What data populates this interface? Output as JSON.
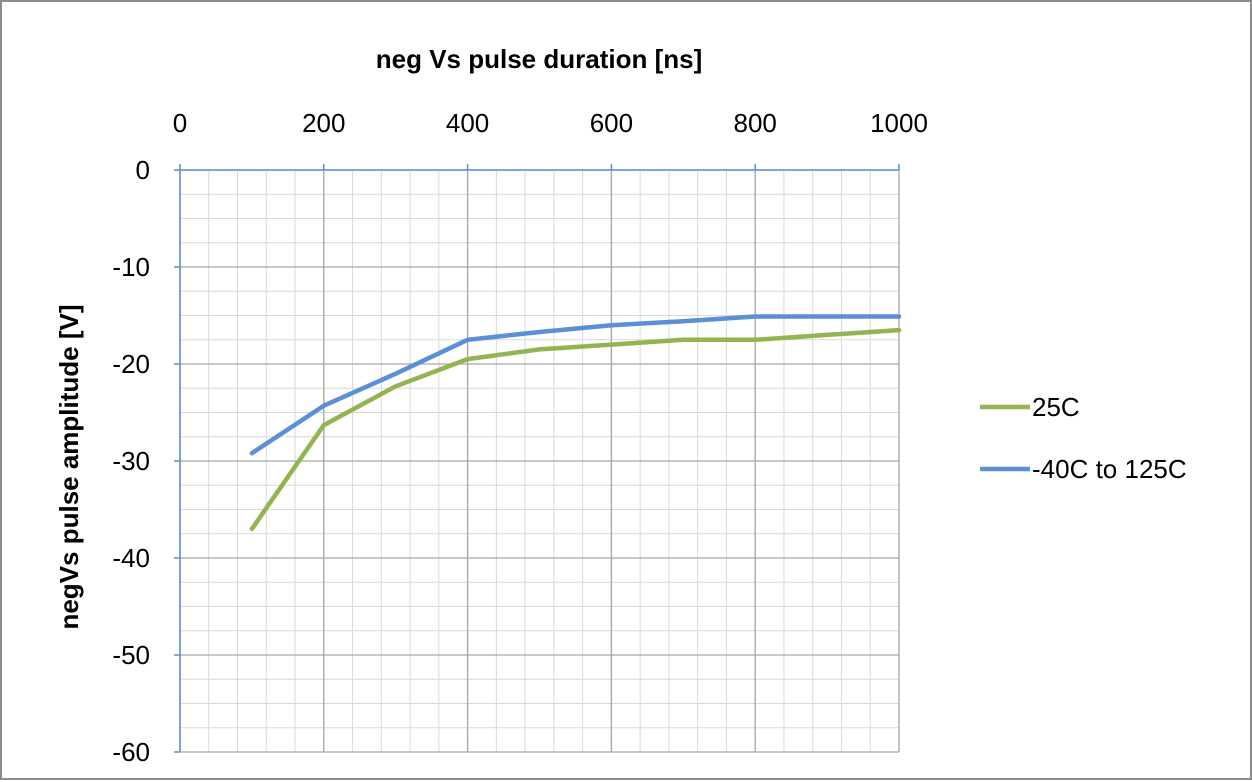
{
  "chart_data": {
    "type": "line",
    "title": "",
    "xlabel": "neg Vs pulse duration [ns]",
    "ylabel": "negVs pulse amplitude [V]",
    "xlim": [
      0,
      1000
    ],
    "ylim": [
      -60,
      0
    ],
    "x_ticks": [
      0,
      200,
      400,
      600,
      800,
      1000
    ],
    "y_ticks": [
      0,
      -10,
      -20,
      -30,
      -40,
      -50,
      -60
    ],
    "x_axis_position": "top",
    "x_minor_step": 40,
    "y_minor_step": 2.5,
    "grid": true,
    "legend_position": "right",
    "series": [
      {
        "name": "25C",
        "color": "#92b552",
        "x": [
          100,
          200,
          300,
          400,
          500,
          600,
          700,
          800,
          900,
          1000
        ],
        "y": [
          -37,
          -26.3,
          -22.3,
          -19.5,
          -18.5,
          -18,
          -17.5,
          -17.5,
          -17,
          -16.5
        ]
      },
      {
        "name": "-40C to 125C",
        "color": "#5b8fd6",
        "x": [
          100,
          200,
          300,
          400,
          500,
          600,
          700,
          800,
          900,
          1000
        ],
        "y": [
          -29.2,
          -24.3,
          -21,
          -17.5,
          -16.7,
          -16,
          -15.6,
          -15.1,
          -15.1,
          -15.1
        ]
      }
    ]
  }
}
